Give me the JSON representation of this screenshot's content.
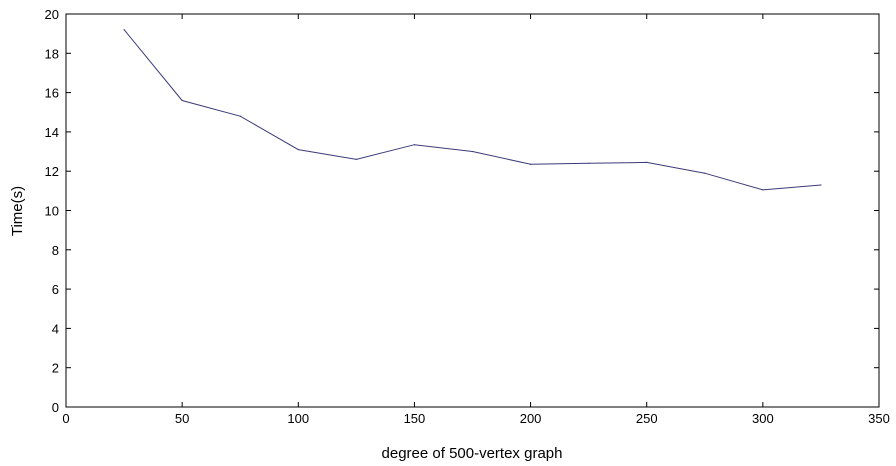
{
  "chart_data": {
    "type": "line",
    "title": "",
    "xlabel": "degree of 500-vertex graph",
    "ylabel": "Time(s)",
    "xlim": [
      0,
      350
    ],
    "ylim": [
      0,
      20
    ],
    "xticks": [
      0,
      50,
      100,
      150,
      200,
      250,
      300,
      350
    ],
    "yticks": [
      0,
      2,
      4,
      6,
      8,
      10,
      12,
      14,
      16,
      18,
      20
    ],
    "grid": false,
    "legend": "none",
    "series": [
      {
        "color": "#3b3b7a",
        "x": [
          25,
          50,
          75,
          100,
          125,
          150,
          175,
          200,
          225,
          250,
          275,
          300,
          325
        ],
        "y": [
          19.2,
          15.6,
          14.8,
          13.1,
          12.6,
          13.35,
          13.0,
          12.35,
          12.4,
          12.45,
          11.9,
          11.05,
          11.3
        ]
      }
    ]
  }
}
